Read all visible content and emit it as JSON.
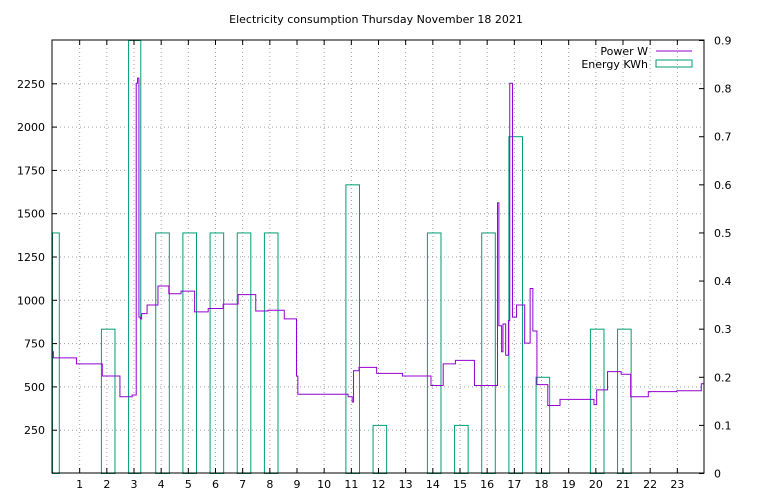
{
  "colors": {
    "power": "#9400d3",
    "energy": "#009e73",
    "grid": "#a0a0a0",
    "axis": "#000000"
  },
  "chart_data": {
    "type": "line",
    "title": "Electricity consumption Thursday November 18 2021",
    "x_ticks": [
      "1",
      "2",
      "3",
      "4",
      "5",
      "6",
      "7",
      "8",
      "9",
      "10",
      "11",
      "12",
      "13",
      "14",
      "15",
      "16",
      "17",
      "18",
      "19",
      "20",
      "21",
      "22",
      "23"
    ],
    "xlim": [
      0,
      24
    ],
    "y_left": {
      "lim": [
        0,
        2500
      ],
      "ticks": [
        "250",
        "500",
        "750",
        "1000",
        "1250",
        "1500",
        "1750",
        "2000",
        "2250"
      ],
      "tick_values": [
        250,
        500,
        750,
        1000,
        1250,
        1500,
        1750,
        2000,
        2250
      ]
    },
    "y_right": {
      "lim": [
        0,
        0.9
      ],
      "ticks": [
        "0",
        "0.1",
        "0.2",
        "0.3",
        "0.4",
        "0.5",
        "0.6",
        "0.7",
        "0.8",
        "0.9"
      ],
      "tick_values": [
        0,
        0.1,
        0.2,
        0.3,
        0.4,
        0.5,
        0.6,
        0.7,
        0.8,
        0.9
      ]
    },
    "grid": true,
    "legend_position": "top-right",
    "series": [
      {
        "name": "Power W",
        "type": "step-line",
        "axis": "left",
        "x": [
          0,
          0.05,
          0.9,
          1.85,
          2.5,
          2.95,
          3.1,
          3.15,
          3.2,
          3.25,
          3.3,
          3.5,
          3.9,
          4.3,
          4.75,
          5.25,
          5.75,
          6.3,
          6.85,
          7.5,
          7.95,
          8.55,
          9.0,
          9.05,
          10.9,
          11.05,
          11.1,
          11.3,
          11.95,
          12.9,
          13.95,
          14.4,
          14.85,
          15.55,
          16.4,
          16.45,
          16.55,
          16.6,
          16.7,
          16.8,
          16.85,
          16.95,
          17.1,
          17.4,
          17.6,
          17.7,
          17.85,
          18.25,
          18.7,
          19.95,
          20.05,
          20.45,
          20.95,
          21.3,
          21.95,
          23.0,
          23.9,
          24.0
        ],
        "values": [
          700,
          665,
          630,
          560,
          440,
          450,
          2250,
          2280,
          900,
          890,
          920,
          970,
          1080,
          1035,
          1050,
          930,
          950,
          975,
          1030,
          935,
          940,
          890,
          560,
          455,
          440,
          410,
          590,
          610,
          575,
          560,
          505,
          630,
          650,
          505,
          1560,
          850,
          700,
          860,
          680,
          880,
          2250,
          900,
          970,
          750,
          1065,
          820,
          510,
          390,
          425,
          395,
          480,
          585,
          570,
          440,
          470,
          475,
          515,
          515
        ]
      },
      {
        "name": "Energy KWh",
        "type": "bar",
        "axis": "right",
        "bar_ranges": [
          [
            0,
            0.25
          ],
          [
            1.8,
            2.3
          ],
          [
            2.8,
            3.25
          ],
          [
            3.8,
            4.3
          ],
          [
            4.8,
            5.3
          ],
          [
            5.8,
            6.3
          ],
          [
            6.8,
            7.3
          ],
          [
            7.8,
            8.3
          ],
          [
            10.8,
            11.3
          ],
          [
            11.8,
            12.3
          ],
          [
            13.8,
            14.3
          ],
          [
            14.8,
            15.3
          ],
          [
            15.8,
            16.3
          ],
          [
            16.8,
            17.3
          ],
          [
            17.8,
            18.3
          ],
          [
            19.8,
            20.3
          ],
          [
            20.8,
            21.3
          ]
        ],
        "values": [
          0.5,
          0.3,
          0.9,
          0.5,
          0.5,
          0.5,
          0.5,
          0.5,
          0.6,
          0.1,
          0.5,
          0.1,
          0.5,
          0.7,
          0.2,
          0.3,
          0.3
        ]
      }
    ]
  }
}
